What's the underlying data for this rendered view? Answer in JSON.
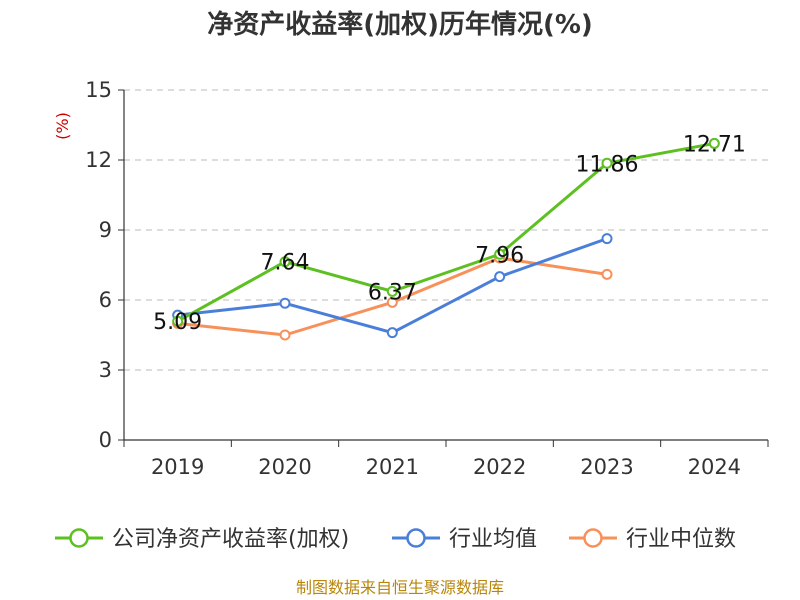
{
  "chart_data": {
    "type": "line",
    "title": "净资产收益率(加权)历年情况(%)",
    "ylabel": "(%)",
    "categories": [
      "2019",
      "2020",
      "2021",
      "2022",
      "2023",
      "2024"
    ],
    "ylim": [
      0,
      15
    ],
    "yticks": [
      "0",
      "3",
      "6",
      "9",
      "12",
      "15"
    ],
    "grid": true,
    "legend_position": "bottom",
    "series": [
      {
        "name": "公司净资产收益率(加权)",
        "color": "#5cc021",
        "values": [
          5.09,
          7.64,
          6.37,
          7.96,
          11.86,
          12.71
        ],
        "labels": [
          "5.09",
          "7.64",
          "6.37",
          "7.96",
          "11.86",
          "12.71"
        ]
      },
      {
        "name": "行业均值",
        "color": "#4a7fd9",
        "values": [
          5.35,
          5.86,
          4.6,
          7.0,
          8.63,
          null
        ]
      },
      {
        "name": "行业中位数",
        "color": "#f8905a",
        "values": [
          5.0,
          4.5,
          5.9,
          7.8,
          7.1,
          null
        ]
      }
    ]
  },
  "footer": {
    "source": "制图数据来自恒生聚源数据库"
  }
}
